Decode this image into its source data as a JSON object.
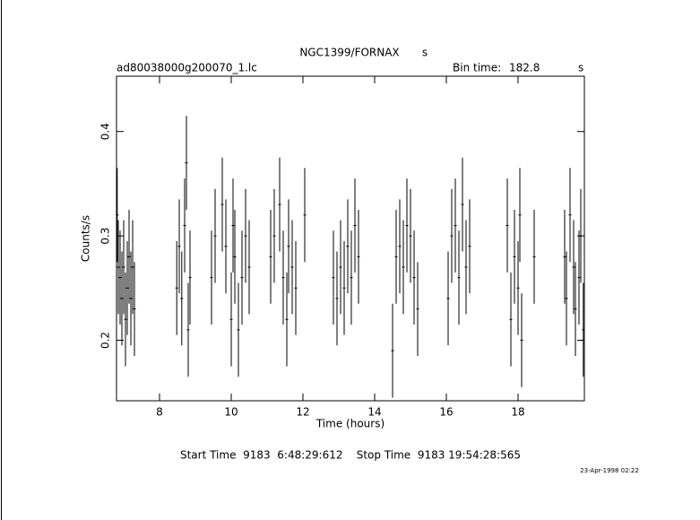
{
  "chart_data": {
    "type": "errorbar",
    "title": "NGC1399/FORNAX",
    "title_unit": "s",
    "subtitle": "ad80038000g200070_1.lc",
    "bin_time_label": "Bin time:",
    "bin_time": "182.8",
    "bin_time_unit": "s",
    "x_label": "Time (hours)",
    "y_label": "Counts/s",
    "footer": "Start Time  9183  6:48:29:612    Stop Time  9183 19:54:28:565",
    "date": "23-Apr-1998 02:22",
    "xlim": [
      6.8,
      19.85
    ],
    "ylim": [
      0.142,
      0.453
    ],
    "xticks": [
      8,
      10,
      12,
      14,
      16,
      18
    ],
    "yticks": [
      0.2,
      0.3,
      0.4
    ],
    "color": "#000000",
    "x": [
      6.82,
      6.85,
      6.9,
      6.95,
      7.0,
      7.05,
      7.1,
      7.15,
      7.2,
      7.25,
      7.3,
      8.48,
      8.55,
      8.62,
      8.7,
      8.75,
      8.8,
      8.85,
      9.45,
      9.55,
      9.75,
      9.85,
      10.0,
      10.05,
      10.1,
      10.2,
      10.3,
      10.4,
      10.5,
      11.1,
      11.2,
      11.35,
      11.45,
      11.55,
      11.6,
      11.7,
      11.8,
      12.05,
      12.85,
      12.95,
      13.05,
      13.15,
      13.25,
      13.35,
      13.45,
      13.55,
      14.5,
      14.6,
      14.7,
      14.8,
      14.9,
      15.0,
      15.1,
      15.2,
      16.05,
      16.15,
      16.25,
      16.35,
      16.45,
      16.55,
      16.65,
      17.7,
      17.8,
      17.9,
      18.0,
      18.05,
      18.1,
      18.45,
      19.3,
      19.35,
      19.45,
      19.55,
      19.6,
      19.7,
      19.75,
      19.82
    ],
    "values": [
      0.32,
      0.27,
      0.26,
      0.24,
      0.27,
      0.22,
      0.25,
      0.28,
      0.24,
      0.27,
      0.23,
      0.25,
      0.29,
      0.24,
      0.31,
      0.37,
      0.21,
      0.26,
      0.26,
      0.3,
      0.33,
      0.29,
      0.22,
      0.31,
      0.28,
      0.21,
      0.26,
      0.3,
      0.27,
      0.28,
      0.3,
      0.33,
      0.26,
      0.22,
      0.29,
      0.27,
      0.25,
      0.32,
      0.26,
      0.24,
      0.27,
      0.25,
      0.29,
      0.26,
      0.31,
      0.28,
      0.19,
      0.28,
      0.29,
      0.27,
      0.31,
      0.3,
      0.26,
      0.23,
      0.24,
      0.3,
      0.31,
      0.26,
      0.33,
      0.27,
      0.29,
      0.31,
      0.22,
      0.28,
      0.25,
      0.32,
      0.2,
      0.28,
      0.28,
      0.24,
      0.32,
      0.27,
      0.23,
      0.26,
      0.3,
      0.21
    ],
    "errors": [
      0.045,
      0.045,
      0.045,
      0.045,
      0.045,
      0.045,
      0.045,
      0.045,
      0.045,
      0.045,
      0.045,
      0.045,
      0.045,
      0.045,
      0.045,
      0.045,
      0.045,
      0.045,
      0.045,
      0.045,
      0.045,
      0.045,
      0.045,
      0.045,
      0.045,
      0.045,
      0.045,
      0.045,
      0.045,
      0.045,
      0.045,
      0.045,
      0.045,
      0.045,
      0.045,
      0.045,
      0.045,
      0.045,
      0.045,
      0.045,
      0.045,
      0.045,
      0.045,
      0.045,
      0.045,
      0.045,
      0.045,
      0.045,
      0.045,
      0.045,
      0.045,
      0.045,
      0.045,
      0.045,
      0.045,
      0.045,
      0.045,
      0.045,
      0.045,
      0.045,
      0.045,
      0.045,
      0.045,
      0.045,
      0.045,
      0.045,
      0.045,
      0.045,
      0.045,
      0.045,
      0.045,
      0.045,
      0.045,
      0.045,
      0.045,
      0.045
    ]
  }
}
